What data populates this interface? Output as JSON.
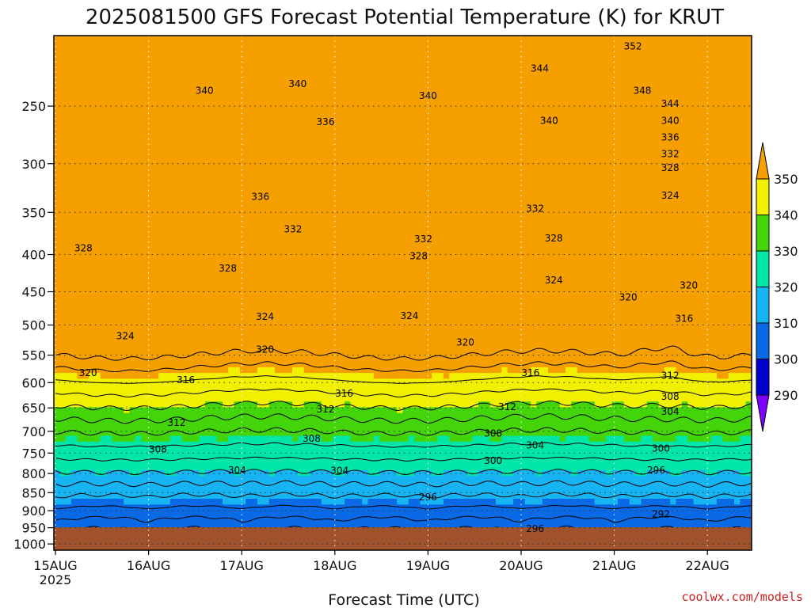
{
  "chart_data": {
    "type": "heatmap",
    "title": "2025081500 GFS Forecast Potential Temperature (K) for KRUT",
    "xlabel": "Forecast Time (UTC)",
    "ylabel": "",
    "x_ticks": [
      "15AUG",
      "16AUG",
      "17AUG",
      "18AUG",
      "19AUG",
      "20AUG",
      "21AUG",
      "22AUG"
    ],
    "x_year": "2025",
    "x_range_days": [
      0,
      7.5
    ],
    "y_ticks": [
      250,
      300,
      350,
      400,
      450,
      500,
      550,
      600,
      650,
      700,
      750,
      800,
      850,
      900,
      950,
      1000
    ],
    "y_range_hpa": [
      200,
      1020
    ],
    "y_scale": "log-pressure, decreasing upward",
    "colorbar": {
      "levels": [
        290,
        300,
        310,
        320,
        330,
        340,
        350
      ],
      "colors": [
        "#7f00ff",
        "#0000cc",
        "#0a6ae6",
        "#16b4f2",
        "#00e6a8",
        "#44d40a",
        "#f0f000",
        "#f5a000"
      ],
      "extend": "both"
    },
    "contour_interval": 4,
    "contour_labels": [
      {
        "value": "352",
        "day": 6.2,
        "p": 207
      },
      {
        "value": "344",
        "day": 5.2,
        "p": 222
      },
      {
        "value": "340",
        "day": 1.6,
        "p": 238
      },
      {
        "value": "340",
        "day": 2.6,
        "p": 233
      },
      {
        "value": "340",
        "day": 4.0,
        "p": 242
      },
      {
        "value": "340",
        "day": 5.3,
        "p": 262
      },
      {
        "value": "348",
        "day": 6.3,
        "p": 238
      },
      {
        "value": "344",
        "day": 6.6,
        "p": 248
      },
      {
        "value": "340",
        "day": 6.6,
        "p": 262
      },
      {
        "value": "336",
        "day": 2.9,
        "p": 263
      },
      {
        "value": "336",
        "day": 6.6,
        "p": 276
      },
      {
        "value": "332",
        "day": 6.6,
        "p": 291
      },
      {
        "value": "328",
        "day": 6.6,
        "p": 304
      },
      {
        "value": "324",
        "day": 6.6,
        "p": 332
      },
      {
        "value": "336",
        "day": 2.2,
        "p": 333
      },
      {
        "value": "332",
        "day": 2.55,
        "p": 369
      },
      {
        "value": "332",
        "day": 3.95,
        "p": 381
      },
      {
        "value": "332",
        "day": 5.15,
        "p": 346
      },
      {
        "value": "328",
        "day": 0.3,
        "p": 392
      },
      {
        "value": "328",
        "day": 1.85,
        "p": 418
      },
      {
        "value": "328",
        "day": 3.9,
        "p": 402
      },
      {
        "value": "328",
        "day": 5.35,
        "p": 380
      },
      {
        "value": "324",
        "day": 5.35,
        "p": 434
      },
      {
        "value": "324",
        "day": 0.75,
        "p": 518
      },
      {
        "value": "324",
        "day": 2.25,
        "p": 487
      },
      {
        "value": "324",
        "day": 3.8,
        "p": 486
      },
      {
        "value": "320",
        "day": 6.15,
        "p": 458
      },
      {
        "value": "320",
        "day": 6.8,
        "p": 441
      },
      {
        "value": "316",
        "day": 6.75,
        "p": 490
      },
      {
        "value": "320",
        "day": 0.35,
        "p": 582
      },
      {
        "value": "320",
        "day": 2.25,
        "p": 540
      },
      {
        "value": "320",
        "day": 4.4,
        "p": 528
      },
      {
        "value": "316",
        "day": 1.4,
        "p": 595
      },
      {
        "value": "316",
        "day": 3.1,
        "p": 621
      },
      {
        "value": "316",
        "day": 5.1,
        "p": 582
      },
      {
        "value": "312",
        "day": 6.6,
        "p": 587
      },
      {
        "value": "308",
        "day": 6.6,
        "p": 627
      },
      {
        "value": "304",
        "day": 6.6,
        "p": 658
      },
      {
        "value": "312",
        "day": 1.3,
        "p": 681
      },
      {
        "value": "312",
        "day": 2.9,
        "p": 653
      },
      {
        "value": "312",
        "day": 4.85,
        "p": 648
      },
      {
        "value": "308",
        "day": 1.1,
        "p": 741
      },
      {
        "value": "308",
        "day": 2.75,
        "p": 716
      },
      {
        "value": "308",
        "day": 4.7,
        "p": 705
      },
      {
        "value": "304",
        "day": 5.15,
        "p": 732
      },
      {
        "value": "300",
        "day": 6.5,
        "p": 739
      },
      {
        "value": "304",
        "day": 1.95,
        "p": 792
      },
      {
        "value": "304",
        "day": 3.05,
        "p": 793
      },
      {
        "value": "300",
        "day": 4.7,
        "p": 768
      },
      {
        "value": "296",
        "day": 6.45,
        "p": 792
      },
      {
        "value": "296",
        "day": 4.0,
        "p": 862
      },
      {
        "value": "292",
        "day": 6.5,
        "p": 910
      },
      {
        "value": "296",
        "day": 5.15,
        "p": 953
      }
    ]
  },
  "credit": "coolwx.com/models"
}
